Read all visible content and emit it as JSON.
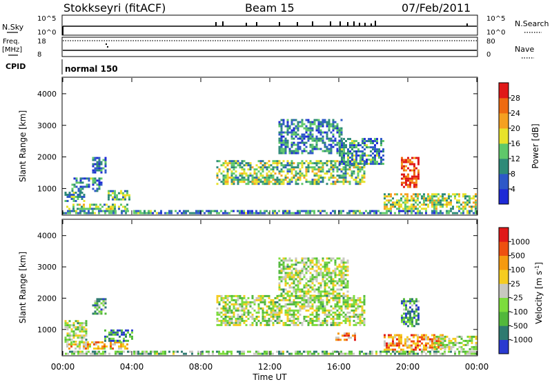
{
  "header": {
    "station": "Stokkseyri (fitACF)",
    "beam": "Beam 15",
    "date": "07/Feb/2011"
  },
  "top_panels": {
    "nsky_label": "N.Sky",
    "nsky_ticks": [
      "10^5",
      "10^0"
    ],
    "nsearch_label": "N.Search",
    "nsearch_ticks": [
      "10^5",
      "10^0"
    ],
    "freq_label": "Freq.",
    "freq_unit": "[MHz]",
    "freq_ticks": [
      "18",
      "8"
    ],
    "nave_label": "Nave",
    "nave_ticks": [
      "80",
      "0"
    ],
    "cpid_label": "CPID",
    "cpid_value": "normal 150"
  },
  "chart_data": [
    {
      "type": "heatmap",
      "name": "power",
      "ylabel": "Slant Range [km]",
      "ylim": [
        180,
        4500
      ],
      "y_ticks": [
        "1000",
        "2000",
        "3000",
        "4000"
      ],
      "xlim": [
        0,
        24
      ],
      "x_ticks": [
        "00:00",
        "04:00",
        "08:00",
        "12:00",
        "16:00",
        "20:00",
        "00:00"
      ],
      "colorbar": {
        "label": "Power [dB]",
        "ticks": [
          "4",
          "8",
          "12",
          "16",
          "20",
          "24",
          "28"
        ],
        "colors": [
          "#1e2ad6",
          "#2d58c8",
          "#2e8a78",
          "#5fc86a",
          "#e8e22a",
          "#f5a020",
          "#ee6a10",
          "#e01818"
        ]
      },
      "regions": [
        {
          "t0": 0.2,
          "t1": 3.8,
          "r0": 380,
          "r1": 520,
          "level": 0.45
        },
        {
          "t0": 0.1,
          "t1": 1.2,
          "r0": 620,
          "r1": 900,
          "level": 0.35
        },
        {
          "t0": 0.5,
          "t1": 2.2,
          "r0": 950,
          "r1": 1350,
          "level": 0.3
        },
        {
          "t0": 2.6,
          "t1": 3.9,
          "r0": 650,
          "r1": 950,
          "level": 0.4
        },
        {
          "t0": 1.7,
          "t1": 2.5,
          "r0": 1500,
          "r1": 2000,
          "level": 0.2
        },
        {
          "t0": 8.9,
          "t1": 17.5,
          "r0": 1150,
          "r1": 1900,
          "level": 0.45
        },
        {
          "t0": 12.5,
          "t1": 16.2,
          "r0": 2100,
          "r1": 3200,
          "level": 0.25
        },
        {
          "t0": 16.0,
          "t1": 18.6,
          "r0": 1800,
          "r1": 2600,
          "level": 0.3
        },
        {
          "t0": 19.6,
          "t1": 20.6,
          "r0": 1050,
          "r1": 2000,
          "level": 0.88
        },
        {
          "t0": 18.6,
          "t1": 24.0,
          "r0": 380,
          "r1": 850,
          "level": 0.5
        },
        {
          "t0": 0.0,
          "t1": 24.0,
          "r0": 190,
          "r1": 320,
          "level": 0.3
        }
      ]
    },
    {
      "type": "heatmap",
      "name": "velocity",
      "ylabel": "Slant Range [km]",
      "ylim": [
        180,
        4500
      ],
      "y_ticks": [
        "1000",
        "2000",
        "3000",
        "4000"
      ],
      "xlim": [
        0,
        24
      ],
      "x_ticks": [
        "00:00",
        "04:00",
        "08:00",
        "12:00",
        "16:00",
        "20:00",
        "00:00"
      ],
      "xlabel": "Time UT",
      "colorbar": {
        "label": "Velocity [m s",
        "label_sup": "-1",
        "label_end": "]",
        "ticks": [
          "1000",
          "500",
          "100",
          "25",
          "-25",
          "-100",
          "-500",
          "-1000"
        ],
        "colors": [
          "#2a3ad0",
          "#2e7a70",
          "#52b83c",
          "#7cdc3c",
          "#c8c8c0",
          "#f5cc20",
          "#f59a10",
          "#ee5010",
          "#e01818"
        ]
      },
      "regions": [
        {
          "t0": 0.2,
          "t1": 3.8,
          "r0": 380,
          "r1": 620,
          "level": 0.62
        },
        {
          "t0": 0.1,
          "t1": 1.4,
          "r0": 600,
          "r1": 1300,
          "level": 0.44
        },
        {
          "t0": 2.4,
          "t1": 4.0,
          "r0": 650,
          "r1": 1000,
          "level": 0.2
        },
        {
          "t0": 1.7,
          "t1": 2.5,
          "r0": 1500,
          "r1": 2000,
          "level": 0.3
        },
        {
          "t0": 8.9,
          "t1": 17.5,
          "r0": 1150,
          "r1": 2100,
          "level": 0.44
        },
        {
          "t0": 12.5,
          "t1": 16.5,
          "r0": 2100,
          "r1": 3300,
          "level": 0.44
        },
        {
          "t0": 15.8,
          "t1": 17.0,
          "r0": 700,
          "r1": 900,
          "level": 0.72
        },
        {
          "t0": 19.6,
          "t1": 20.6,
          "r0": 1100,
          "r1": 2000,
          "level": 0.25
        },
        {
          "t0": 18.6,
          "t1": 22.0,
          "r0": 380,
          "r1": 850,
          "level": 0.72
        },
        {
          "t0": 21.5,
          "t1": 24.0,
          "r0": 400,
          "r1": 800,
          "level": 0.44
        },
        {
          "t0": 0.0,
          "t1": 24.0,
          "r0": 190,
          "r1": 320,
          "level": 0.35
        }
      ]
    }
  ]
}
